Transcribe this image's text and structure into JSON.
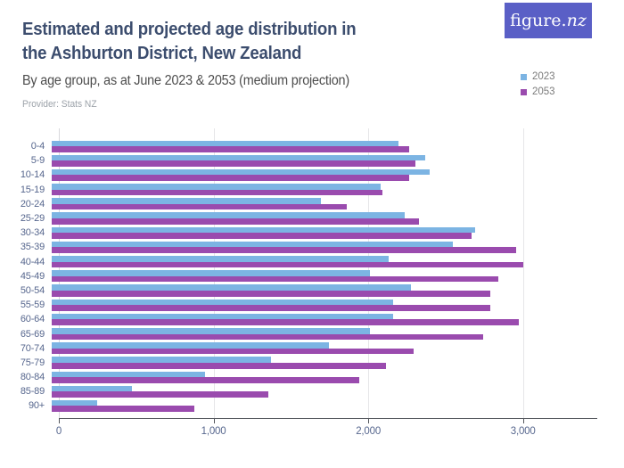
{
  "header": {
    "title_line1": "Estimated and projected age distribution in",
    "title_line2": "the Ashburton District, New Zealand",
    "subtitle": "By age group, as at June 2023 & 2053 (medium projection)",
    "provider": "Provider: Stats NZ"
  },
  "logo": {
    "text_main": "figure.",
    "text_accent": "nz",
    "background": "#5A5FC6"
  },
  "legend": [
    {
      "label": "2023",
      "color": "#7CB4E3"
    },
    {
      "label": "2053",
      "color": "#9A4BAE"
    }
  ],
  "chart_data": {
    "type": "bar",
    "orientation": "horizontal",
    "title": "Estimated and projected age distribution in the Ashburton District, New Zealand",
    "subtitle": "By age group, as at June 2023 & 2053 (medium projection)",
    "provider": "Stats NZ",
    "categories": [
      "0-4",
      "5-9",
      "10-14",
      "15-19",
      "20-24",
      "25-29",
      "30-34",
      "35-39",
      "40-44",
      "45-49",
      "50-54",
      "55-59",
      "60-64",
      "65-69",
      "70-74",
      "75-79",
      "80-84",
      "85-89",
      "90+"
    ],
    "series": [
      {
        "name": "2023",
        "color": "#7CB4E3",
        "values": [
          2210,
          2380,
          2410,
          2100,
          1720,
          2250,
          2700,
          2560,
          2150,
          2030,
          2290,
          2180,
          2180,
          2030,
          1770,
          1400,
          980,
          510,
          290
        ]
      },
      {
        "name": "2053",
        "color": "#9A4BAE",
        "values": [
          2280,
          2320,
          2280,
          2110,
          1880,
          2340,
          2680,
          2960,
          3010,
          2850,
          2800,
          2800,
          2980,
          2750,
          2310,
          2130,
          1960,
          1380,
          910
        ]
      }
    ],
    "xlabel": "",
    "ylabel": "",
    "x_ticks": [
      {
        "value": 0,
        "label": "0"
      },
      {
        "value": 1000,
        "label": "1,000"
      },
      {
        "value": 2000,
        "label": "2,000"
      },
      {
        "value": 3000,
        "label": "3,000"
      }
    ],
    "xlim": [
      0,
      3480
    ],
    "grid": true,
    "legend_position": "top-right",
    "grid_color": "#E6E6E8",
    "zero_line_color": "#D8D9DC",
    "axis_color": "#53565C"
  }
}
